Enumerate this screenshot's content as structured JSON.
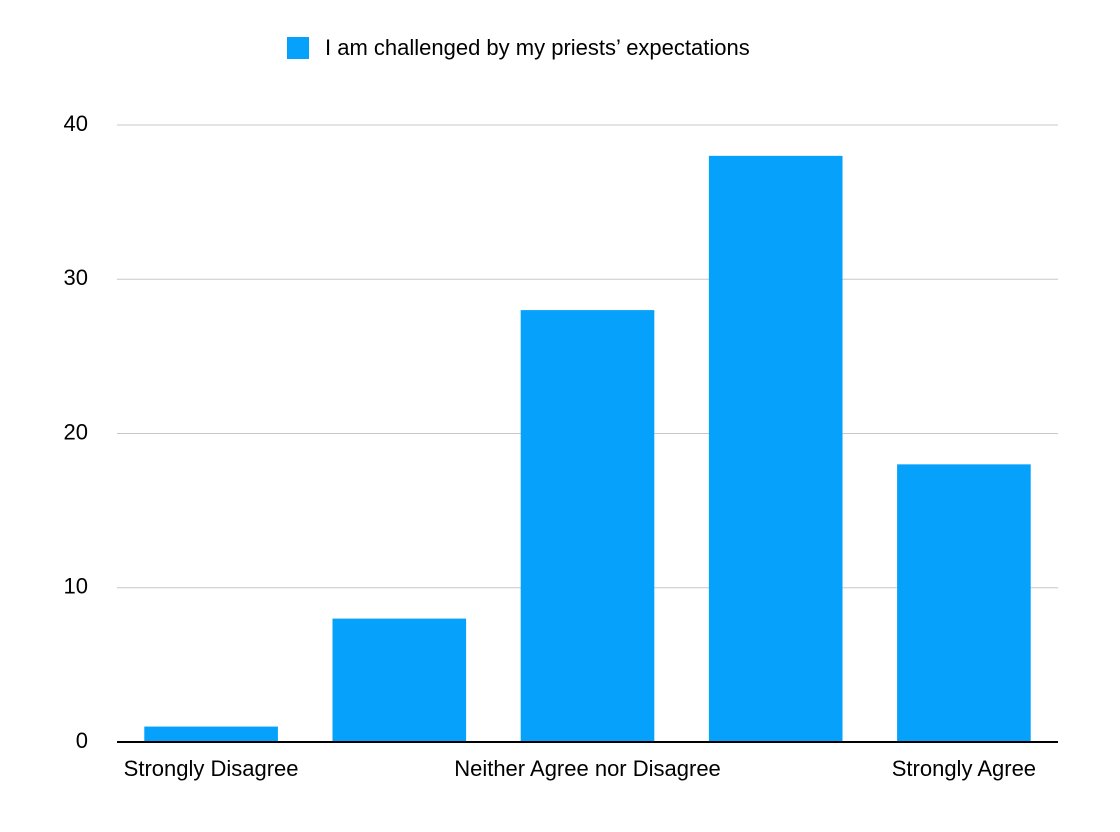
{
  "chart_data": {
    "type": "bar",
    "categories": [
      "Strongly Disagree",
      null,
      "Neither Agree nor Disagree",
      null,
      "Strongly Agree"
    ],
    "series": [
      {
        "name": "I am challenged by my priests’ expectations",
        "color": "#05a1fb",
        "values": [
          1,
          8,
          28,
          38,
          18
        ]
      }
    ],
    "ylim": [
      0,
      40
    ],
    "yticks": [
      0,
      10,
      20,
      30,
      40
    ],
    "grid": true,
    "legend": "top"
  }
}
